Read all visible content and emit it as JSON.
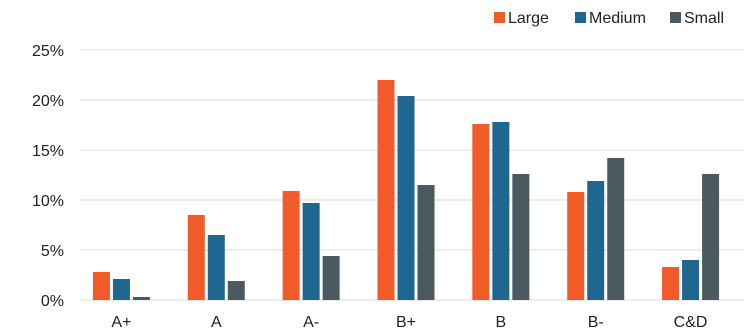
{
  "chart_data": {
    "type": "bar",
    "categories": [
      "A+",
      "A",
      "A-",
      "B+",
      "B",
      "B-",
      "C&D"
    ],
    "series": [
      {
        "name": "Large",
        "color": "#F15A29",
        "values": [
          2.8,
          8.5,
          10.9,
          22.0,
          17.6,
          10.8,
          3.3
        ]
      },
      {
        "name": "Medium",
        "color": "#1F6691",
        "values": [
          2.1,
          6.5,
          9.7,
          20.4,
          17.8,
          11.9,
          4.0
        ]
      },
      {
        "name": "Small",
        "color": "#4A5A60",
        "values": [
          0.3,
          1.9,
          4.4,
          11.5,
          12.6,
          14.2,
          12.6
        ]
      }
    ],
    "ylim": [
      0,
      25
    ],
    "y_ticks": [
      "0%",
      "5%",
      "10%",
      "15%",
      "20%",
      "25%"
    ],
    "y_tick_values": [
      0,
      5,
      10,
      15,
      20,
      25
    ],
    "grid": true,
    "grid_color": "#d9d9d9",
    "legend_position": "top-right"
  }
}
